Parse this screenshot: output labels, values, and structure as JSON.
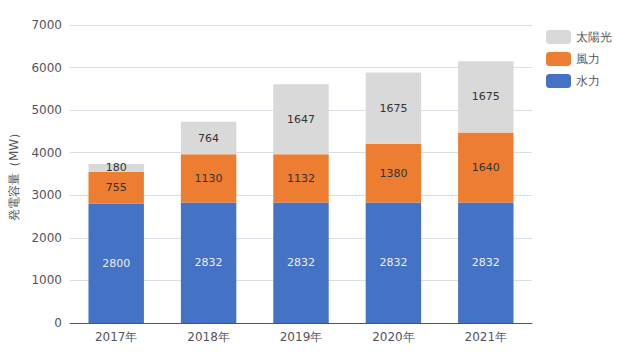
{
  "chart_data": {
    "type": "bar",
    "stacked": true,
    "data_labels": true,
    "grid": true,
    "legend": "right",
    "categories": [
      "2017年",
      "2018年",
      "2019年",
      "2020年",
      "2021年"
    ],
    "ylabel": "発電容量（MW）",
    "ylim": [
      0,
      7000
    ],
    "yticks": [
      0,
      1000,
      2000,
      3000,
      4000,
      5000,
      6000,
      7000
    ],
    "series": [
      {
        "name": "水力",
        "color": "#4472C4",
        "values": [
          2800,
          2832,
          2832,
          2832,
          2832
        ]
      },
      {
        "name": "風力",
        "color": "#ED7D31",
        "values": [
          755,
          1130,
          1132,
          1380,
          1640
        ]
      },
      {
        "name": "太陽光",
        "color": "#D9D9D9",
        "values": [
          180,
          764,
          1647,
          1675,
          1675
        ]
      }
    ]
  }
}
